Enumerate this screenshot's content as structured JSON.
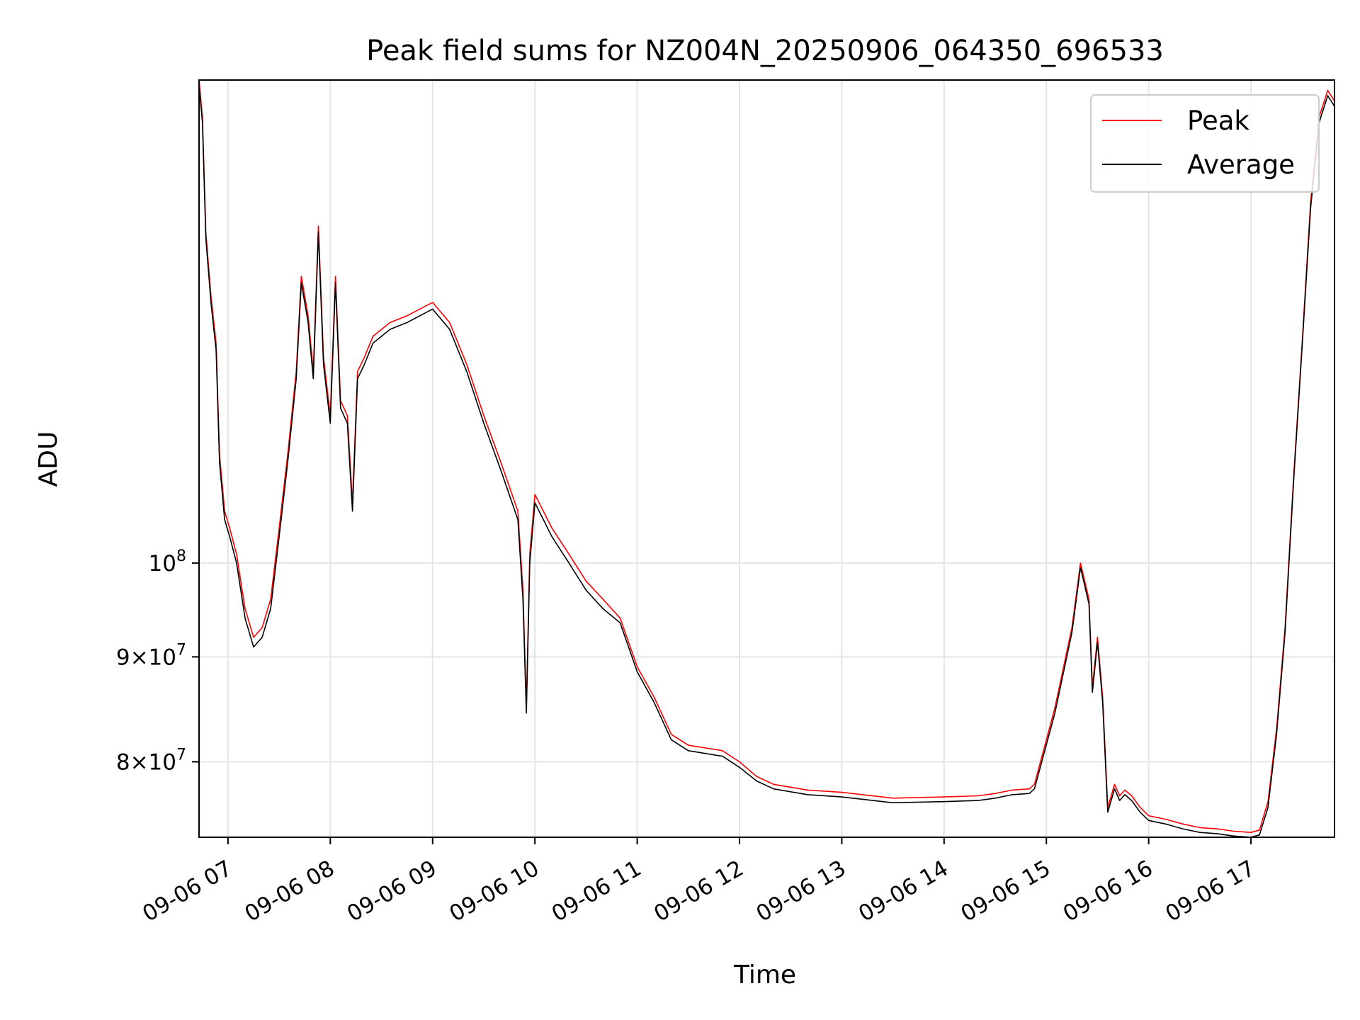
{
  "chart_data": {
    "type": "line",
    "title": "Peak field sums for NZ004N_20250906_064350_696533",
    "xlabel": "Time",
    "ylabel": "ADU",
    "yscale": "log",
    "ylim": [
      73500000,
      172000000
    ],
    "xlim": [
      "09-06 06:43",
      "09-06 17:49"
    ],
    "grid": true,
    "legend_position": "upper right",
    "x_ticks": [
      "09-06 07",
      "09-06 08",
      "09-06 09",
      "09-06 10",
      "09-06 11",
      "09-06 12",
      "09-06 13",
      "09-06 14",
      "09-06 15",
      "09-06 16",
      "09-06 17"
    ],
    "y_ticks": [
      {
        "value": 80000000,
        "mantissa": "8",
        "base": "10",
        "exp": "7"
      },
      {
        "value": 90000000,
        "mantissa": "9",
        "base": "10",
        "exp": "7"
      },
      {
        "value": 100000000,
        "mantissa": "",
        "base": "10",
        "exp": "8"
      }
    ],
    "series": [
      {
        "name": "Peak",
        "color": "#ff0000"
      },
      {
        "name": "Average",
        "color": "#000000"
      }
    ],
    "x": [
      "06:43",
      "06:45",
      "06:47",
      "06:50",
      "06:53",
      "06:55",
      "06:58",
      "07:01",
      "07:05",
      "07:10",
      "07:15",
      "07:20",
      "07:25",
      "07:30",
      "07:35",
      "07:40",
      "07:43",
      "07:47",
      "07:50",
      "07:53",
      "07:56",
      "08:00",
      "08:03",
      "08:06",
      "08:10",
      "08:13",
      "08:16",
      "08:20",
      "08:25",
      "08:35",
      "08:45",
      "09:00",
      "09:10",
      "09:20",
      "09:30",
      "09:40",
      "09:50",
      "09:53",
      "09:55",
      "09:57",
      "10:00",
      "10:10",
      "10:20",
      "10:30",
      "10:40",
      "10:50",
      "11:00",
      "11:10",
      "11:20",
      "11:30",
      "11:50",
      "12:00",
      "12:10",
      "12:20",
      "12:40",
      "13:00",
      "13:30",
      "14:00",
      "14:20",
      "14:30",
      "14:40",
      "14:50",
      "14:53",
      "15:05",
      "15:15",
      "15:20",
      "15:25",
      "15:27",
      "15:30",
      "15:33",
      "15:36",
      "15:40",
      "15:43",
      "15:46",
      "15:50",
      "15:55",
      "16:00",
      "16:10",
      "16:20",
      "16:30",
      "16:40",
      "16:50",
      "17:00",
      "17:05",
      "17:10",
      "17:15",
      "17:20",
      "17:25",
      "17:30",
      "17:35",
      "17:40",
      "17:45",
      "17:49"
    ],
    "peak_values": [
      172000000,
      165000000,
      145000000,
      135000000,
      128000000,
      113000000,
      106000000,
      104000000,
      101000000,
      95000000,
      92000000,
      93000000,
      96000000,
      104000000,
      113000000,
      124000000,
      138000000,
      132000000,
      124000000,
      146000000,
      126000000,
      118000000,
      138000000,
      120000000,
      118000000,
      107000000,
      124000000,
      126000000,
      129000000,
      131000000,
      132000000,
      134000000,
      131000000,
      125000000,
      118000000,
      112000000,
      106000000,
      97000000,
      85000000,
      101000000,
      108000000,
      104000000,
      101000000,
      98000000,
      96000000,
      94000000,
      89000000,
      86000000,
      82500000,
      81500000,
      81000000,
      80000000,
      78700000,
      78000000,
      77500000,
      77300000,
      76800000,
      76900000,
      77000000,
      77200000,
      77500000,
      77600000,
      78000000,
      85000000,
      93000000,
      100000000,
      96000000,
      87000000,
      92000000,
      86000000,
      76000000,
      78000000,
      77000000,
      77500000,
      77000000,
      76000000,
      75300000,
      75000000,
      74600000,
      74300000,
      74200000,
      74000000,
      73900000,
      74100000,
      76500000,
      83000000,
      93000000,
      110000000,
      128000000,
      150000000,
      165000000,
      170000000,
      168000000
    ],
    "average_values": [
      171000000,
      164000000,
      144000000,
      134000000,
      127000000,
      112000000,
      105000000,
      103000000,
      100000000,
      94000000,
      91000000,
      92000000,
      95000000,
      103000000,
      112000000,
      123000000,
      137000000,
      131000000,
      123000000,
      145000000,
      125000000,
      117000000,
      137000000,
      119000000,
      117000000,
      106000000,
      123000000,
      125000000,
      128000000,
      130000000,
      131000000,
      133000000,
      130000000,
      124000000,
      117000000,
      111000000,
      105000000,
      96000000,
      84500000,
      100000000,
      107000000,
      103000000,
      100000000,
      97000000,
      95000000,
      93500000,
      88500000,
      85500000,
      82000000,
      81000000,
      80500000,
      79500000,
      78300000,
      77600000,
      77100000,
      76900000,
      76400000,
      76500000,
      76600000,
      76800000,
      77100000,
      77200000,
      77600000,
      84500000,
      92500000,
      99500000,
      95500000,
      86500000,
      91500000,
      85500000,
      75600000,
      77600000,
      76600000,
      77100000,
      76600000,
      75600000,
      74900000,
      74600000,
      74200000,
      73900000,
      73800000,
      73600000,
      73500000,
      73700000,
      76000000,
      82500000,
      92500000,
      109500000,
      127500000,
      149000000,
      164000000,
      169000000,
      167000000
    ]
  }
}
